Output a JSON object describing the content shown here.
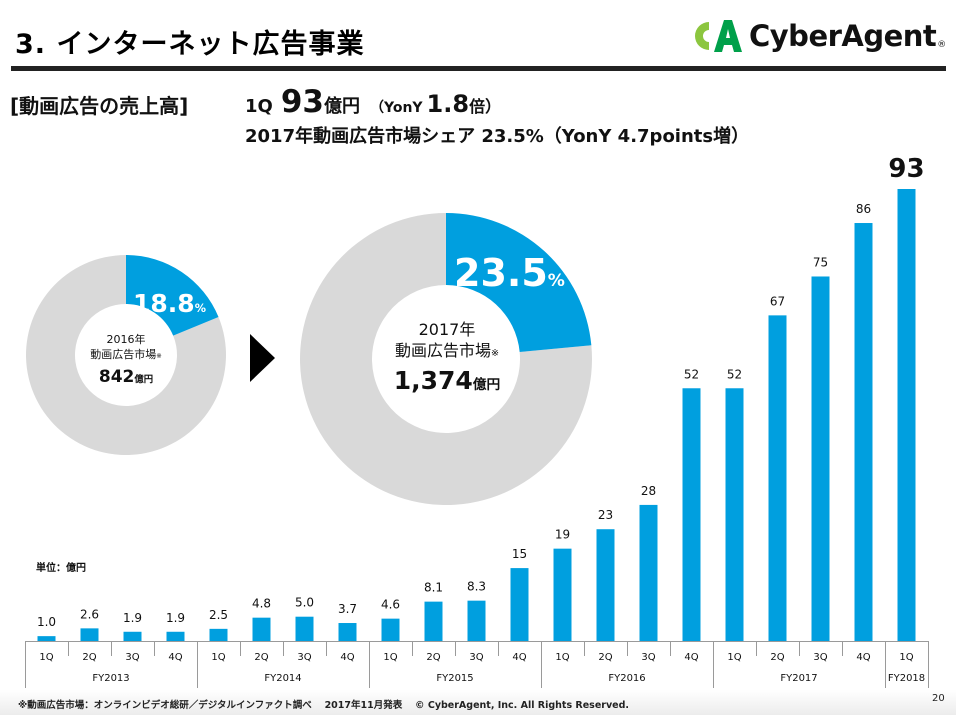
{
  "header": {
    "title": "3.  インターネット広告事業",
    "logo_text": "CyberAgent",
    "logo_reg": "®",
    "logo_mark": "CA"
  },
  "headline": {
    "label": "[動画広告の売上高]",
    "quarter": "1Q",
    "value": "93",
    "value_unit": "億円",
    "yoy_open": "（YonY",
    "yoy_value": "1.8",
    "yoy_unit": "倍）",
    "line2": "2017年動画広告市場シェア 23.5%（YonY 4.7points増）"
  },
  "colors": {
    "accent": "#009fdf",
    "donut_rest": "#d9d9d9",
    "axis": "#9a9a9a",
    "logo_light": "#8cc63f",
    "logo_dark": "#00a04a"
  },
  "donuts": [
    {
      "year": "2016年",
      "market": "動画広告市場",
      "note_mark": "※",
      "value": "842",
      "value_unit": "億円",
      "share_label": "18.8",
      "share_symbol": "%",
      "share": 18.8
    },
    {
      "year": "2017年",
      "market": "動画広告市場",
      "note_mark": "※",
      "value": "1,374",
      "value_unit": "億円",
      "share_label": "23.5",
      "share_symbol": "%",
      "share": 23.5
    }
  ],
  "arrow_icon": "triangle-right-icon",
  "chart_data": {
    "type": "bar",
    "title": "動画広告の売上高",
    "unit_label": "単位：億円",
    "xlabel": "",
    "ylabel": "",
    "ylim": [
      0,
      93
    ],
    "grid": false,
    "categories": [
      "1Q",
      "2Q",
      "3Q",
      "4Q",
      "1Q",
      "2Q",
      "3Q",
      "4Q",
      "1Q",
      "2Q",
      "3Q",
      "4Q",
      "1Q",
      "2Q",
      "3Q",
      "4Q",
      "1Q",
      "2Q",
      "3Q",
      "4Q",
      "1Q"
    ],
    "groups": [
      {
        "label": "FY2013",
        "count": 4
      },
      {
        "label": "FY2014",
        "count": 4
      },
      {
        "label": "FY2015",
        "count": 4
      },
      {
        "label": "FY2016",
        "count": 4
      },
      {
        "label": "FY2017",
        "count": 4
      },
      {
        "label": "FY2018",
        "count": 1
      }
    ],
    "values": [
      1.0,
      2.6,
      1.9,
      1.9,
      2.5,
      4.8,
      5.0,
      3.7,
      4.6,
      8.1,
      8.3,
      15,
      19,
      23,
      28,
      52,
      52,
      67,
      75,
      86,
      93
    ],
    "value_labels": [
      "1.0",
      "2.6",
      "1.9",
      "1.9",
      "2.5",
      "4.8",
      "5.0",
      "3.7",
      "4.6",
      "8.1",
      "8.3",
      "15",
      "19",
      "23",
      "28",
      "52",
      "52",
      "67",
      "75",
      "86",
      "93"
    ],
    "highlight_index": 20
  },
  "footer": {
    "note": "※動画広告市場：オンラインビデオ総研／デジタルインファクト調べ　 2017年11月発表　 © CyberAgent, Inc. All Rights Reserved.",
    "page": "20"
  }
}
